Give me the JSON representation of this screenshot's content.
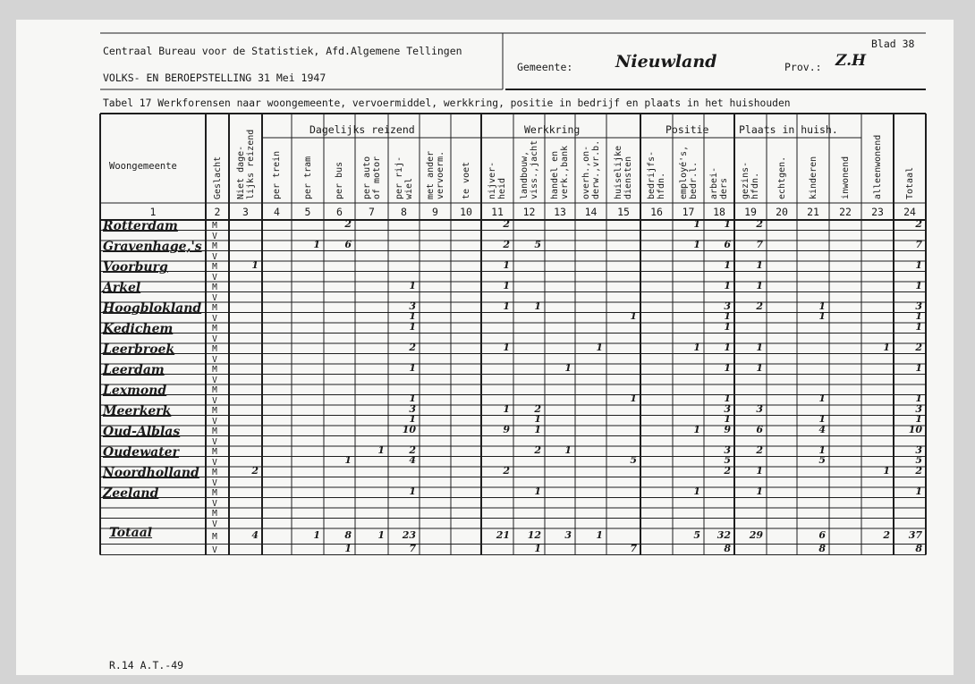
{
  "header": {
    "org": "Centraal Bureau voor de Statistiek, Afd.Algemene Tellingen",
    "census": "VOLKS- EN BEROEPSTELLING 31 Mei 1947",
    "blad": "Blad 38",
    "gemeente_label": "Gemeente:",
    "gemeente_value": "Nieuwland",
    "prov_label": "Prov.:",
    "prov_value": "Z.H",
    "table_title": "Tabel 17 Werkforensen naar woongemeente, vervoermiddel, werkkring, positie in bedrijf en plaats in het huishouden",
    "footer_code": "R.14 A.T.-49"
  },
  "column_groups": {
    "woongemeente": "Woongemeente",
    "dagelijks": "Dagelijks reizend",
    "werkkring": "Werkkring",
    "positie": "Positie",
    "plaats": "Plaats in huish."
  },
  "columns": [
    "Geslacht",
    "Niet dage-\nlijks reizend",
    "per trein",
    "per tram",
    "per bus",
    "per auto\nof motor",
    "per rij-\nwiel",
    "met ander\nvervoerm.",
    "te voet",
    "nijver-\nheid",
    "landbouw,\nviss.,jacht",
    "handel en\nverk.,bank",
    "overh.,on-\nderw.,vr.b.",
    "huiselijke\ndiensten",
    "bedrijfs-\nhfdn.",
    "employé's,\nbedr.l.",
    "arbei-\nders",
    "gezins-\nhfdn.",
    "echtgen.",
    "kinderen",
    "inwonend",
    "alleenwonend",
    "Totaal"
  ],
  "column_numbers": [
    "1",
    "2",
    "3",
    "4",
    "5",
    "6",
    "7",
    "8",
    "9",
    "10",
    "11",
    "12",
    "13",
    "14",
    "15",
    "16",
    "17",
    "18",
    "19",
    "20",
    "21",
    "22",
    "23",
    "24"
  ],
  "sex_labels": {
    "m": "M",
    "v": "V"
  },
  "rows": [
    {
      "name": "Rotterdam",
      "m": {
        "6": "2",
        "11": "2",
        "17": "1",
        "18": "1",
        "19": "2",
        "24": "2"
      },
      "v": {}
    },
    {
      "name": "Gravenhage,'s",
      "m": {
        "5": "1",
        "6": "6",
        "11": "2",
        "12": "5",
        "17": "1",
        "18": "6",
        "19": "7",
        "24": "7"
      },
      "v": {}
    },
    {
      "name": "Voorburg",
      "m": {
        "3": "1",
        "11": "1",
        "18": "1",
        "19": "1",
        "24": "1"
      },
      "v": {}
    },
    {
      "name": "Arkel",
      "m": {
        "8": "1",
        "11": "1",
        "18": "1",
        "19": "1",
        "24": "1"
      },
      "v": {}
    },
    {
      "name": "Hoogblokland",
      "m": {
        "8": "3",
        "11": "1",
        "12": "1",
        "18": "3",
        "19": "2",
        "21": "1",
        "24": "3"
      },
      "v": {
        "8": "1",
        "15": "1",
        "18": "1",
        "21": "1",
        "24": "1"
      }
    },
    {
      "name": "Kedichem",
      "m": {
        "8": "1",
        "18": "1",
        "24": "1"
      },
      "v": {}
    },
    {
      "name": "Leerbroek",
      "m": {
        "8": "2",
        "11": "1",
        "14": "1",
        "17": "1",
        "18": "1",
        "19": "1",
        "23": "1",
        "24": "2"
      },
      "v": {}
    },
    {
      "name": "Leerdam",
      "m": {
        "8": "1",
        "13": "1",
        "18": "1",
        "19": "1",
        "24": "1"
      },
      "v": {}
    },
    {
      "name": "Lexmond",
      "m": {},
      "v": {
        "8": "1",
        "15": "1",
        "18": "1",
        "21": "1",
        "24": "1"
      }
    },
    {
      "name": "Meerkerk",
      "m": {
        "8": "3",
        "11": "1",
        "12": "2",
        "18": "3",
        "19": "3",
        "24": "3"
      },
      "v": {
        "8": "1",
        "12": "1",
        "18": "1",
        "21": "1",
        "24": "1"
      }
    },
    {
      "name": "Oud-Alblas",
      "m": {
        "8": "10",
        "11": "9",
        "12": "1",
        "17": "1",
        "18": "9",
        "19": "6",
        "21": "4",
        "24": "10"
      },
      "v": {}
    },
    {
      "name": "Oudewater",
      "m": {
        "7": "1",
        "8": "2",
        "12": "2",
        "13": "1",
        "18": "3",
        "19": "2",
        "21": "1",
        "24": "3"
      },
      "v": {
        "6": "1",
        "8": "4",
        "15": "5",
        "18": "5",
        "21": "5",
        "24": "5"
      }
    },
    {
      "name": "Noordholland",
      "m": {
        "3": "2",
        "11": "2",
        "18": "2",
        "19": "1",
        "23": "1",
        "24": "2"
      },
      "v": {}
    },
    {
      "name": "Zeeland",
      "m": {
        "8": "1",
        "12": "1",
        "17": "1",
        "19": "1",
        "24": "1"
      },
      "v": {}
    },
    {
      "name": "",
      "m": {},
      "v": {}
    }
  ],
  "total": {
    "name": "Totaal",
    "m": {
      "3": "4",
      "5": "1",
      "6": "8",
      "7": "1",
      "8": "23",
      "11": "21",
      "12": "12",
      "13": "3",
      "14": "1",
      "17": "5",
      "18": "32",
      "19": "29",
      "21": "6",
      "23": "2",
      "24": "37"
    },
    "v": {
      "6": "1",
      "8": "7",
      "12": "1",
      "15": "7",
      "18": "8",
      "21": "8",
      "24": "8"
    }
  }
}
